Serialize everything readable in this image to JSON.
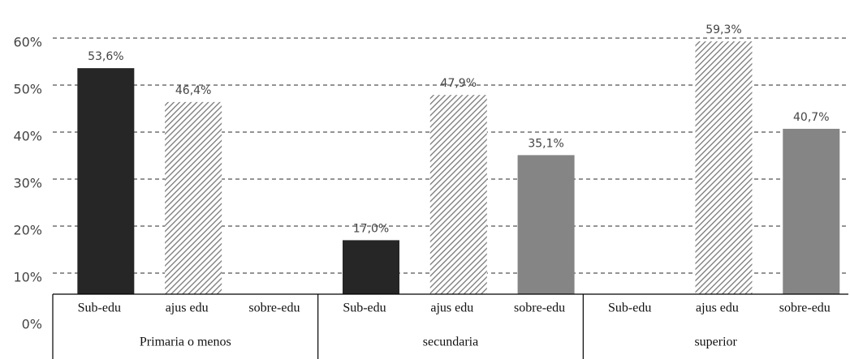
{
  "chart_data": {
    "type": "bar",
    "groups": [
      {
        "name": "Primaria o menos",
        "categories": [
          "Sub-edu",
          "ajus edu",
          "sobre-edu"
        ],
        "values": [
          53.6,
          46.4,
          null
        ],
        "value_labels": [
          "53,6%",
          "46,4%",
          null
        ]
      },
      {
        "name": "secundaria",
        "categories": [
          "Sub-edu",
          "ajus edu",
          "sobre-edu"
        ],
        "values": [
          17.0,
          47.9,
          35.1
        ],
        "value_labels": [
          "17,0%",
          "47,9%",
          "35,1%"
        ]
      },
      {
        "name": "superior",
        "categories": [
          "Sub-edu",
          "ajus edu",
          "sobre-edu"
        ],
        "values": [
          null,
          59.3,
          40.7
        ],
        "value_labels": [
          null,
          "59,3%",
          "40,7%"
        ]
      }
    ],
    "colors": [
      "#262626",
      "#8a8a8a",
      "#858585"
    ],
    "hatch": [
      false,
      true,
      false
    ],
    "ylim": [
      0,
      60
    ],
    "yticks": [
      {
        "value": 0,
        "label": "0%"
      },
      {
        "value": 10,
        "label": "10%"
      },
      {
        "value": 20,
        "label": "20%"
      },
      {
        "value": 30,
        "label": "30%"
      },
      {
        "value": 40,
        "label": "40%"
      },
      {
        "value": 50,
        "label": "50%"
      },
      {
        "value": 60,
        "label": "60%"
      }
    ],
    "grid": true
  }
}
